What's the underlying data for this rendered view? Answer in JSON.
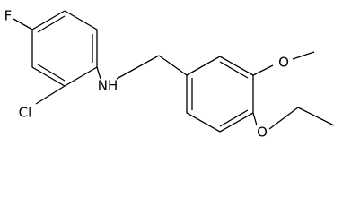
{
  "atoms": [
    {
      "label": "F"
    },
    {
      "label": "Cl"
    },
    {
      "label": "NH"
    },
    {
      "label": "O"
    },
    {
      "label": "O"
    }
  ]
}
